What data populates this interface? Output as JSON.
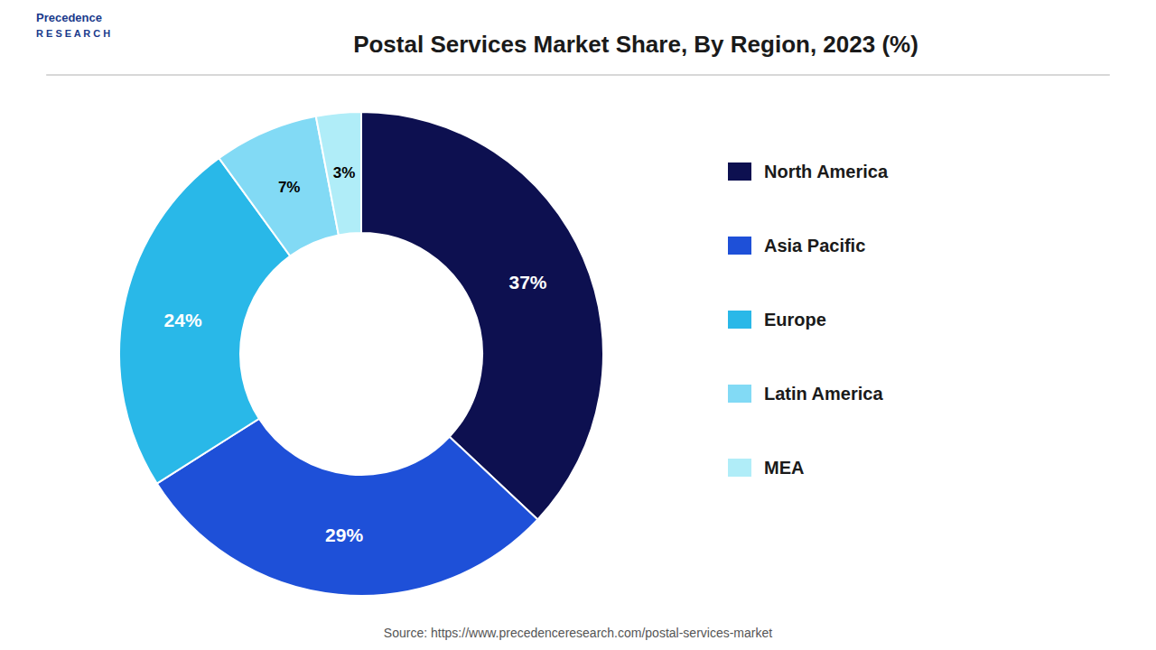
{
  "chart_data": {
    "type": "donut",
    "title": "Postal Services Market Share, By Region, 2023 (%)",
    "categories": [
      "North America",
      "Asia Pacific",
      "Europe",
      "Latin America",
      "MEA"
    ],
    "values": [
      37,
      29,
      24,
      7,
      3
    ],
    "value_labels": [
      "37%",
      "29%",
      "24%",
      "7%",
      "3%"
    ],
    "colors": [
      "#0d1050",
      "#1e50d8",
      "#29b8e8",
      "#82daf5",
      "#b0edf8"
    ],
    "data_labels": true,
    "legend": "right",
    "annotations": [
      "Source: https://www.precedenceresearch.com/postal-services-market",
      "Precedence",
      "R E S E A R C H"
    ]
  }
}
